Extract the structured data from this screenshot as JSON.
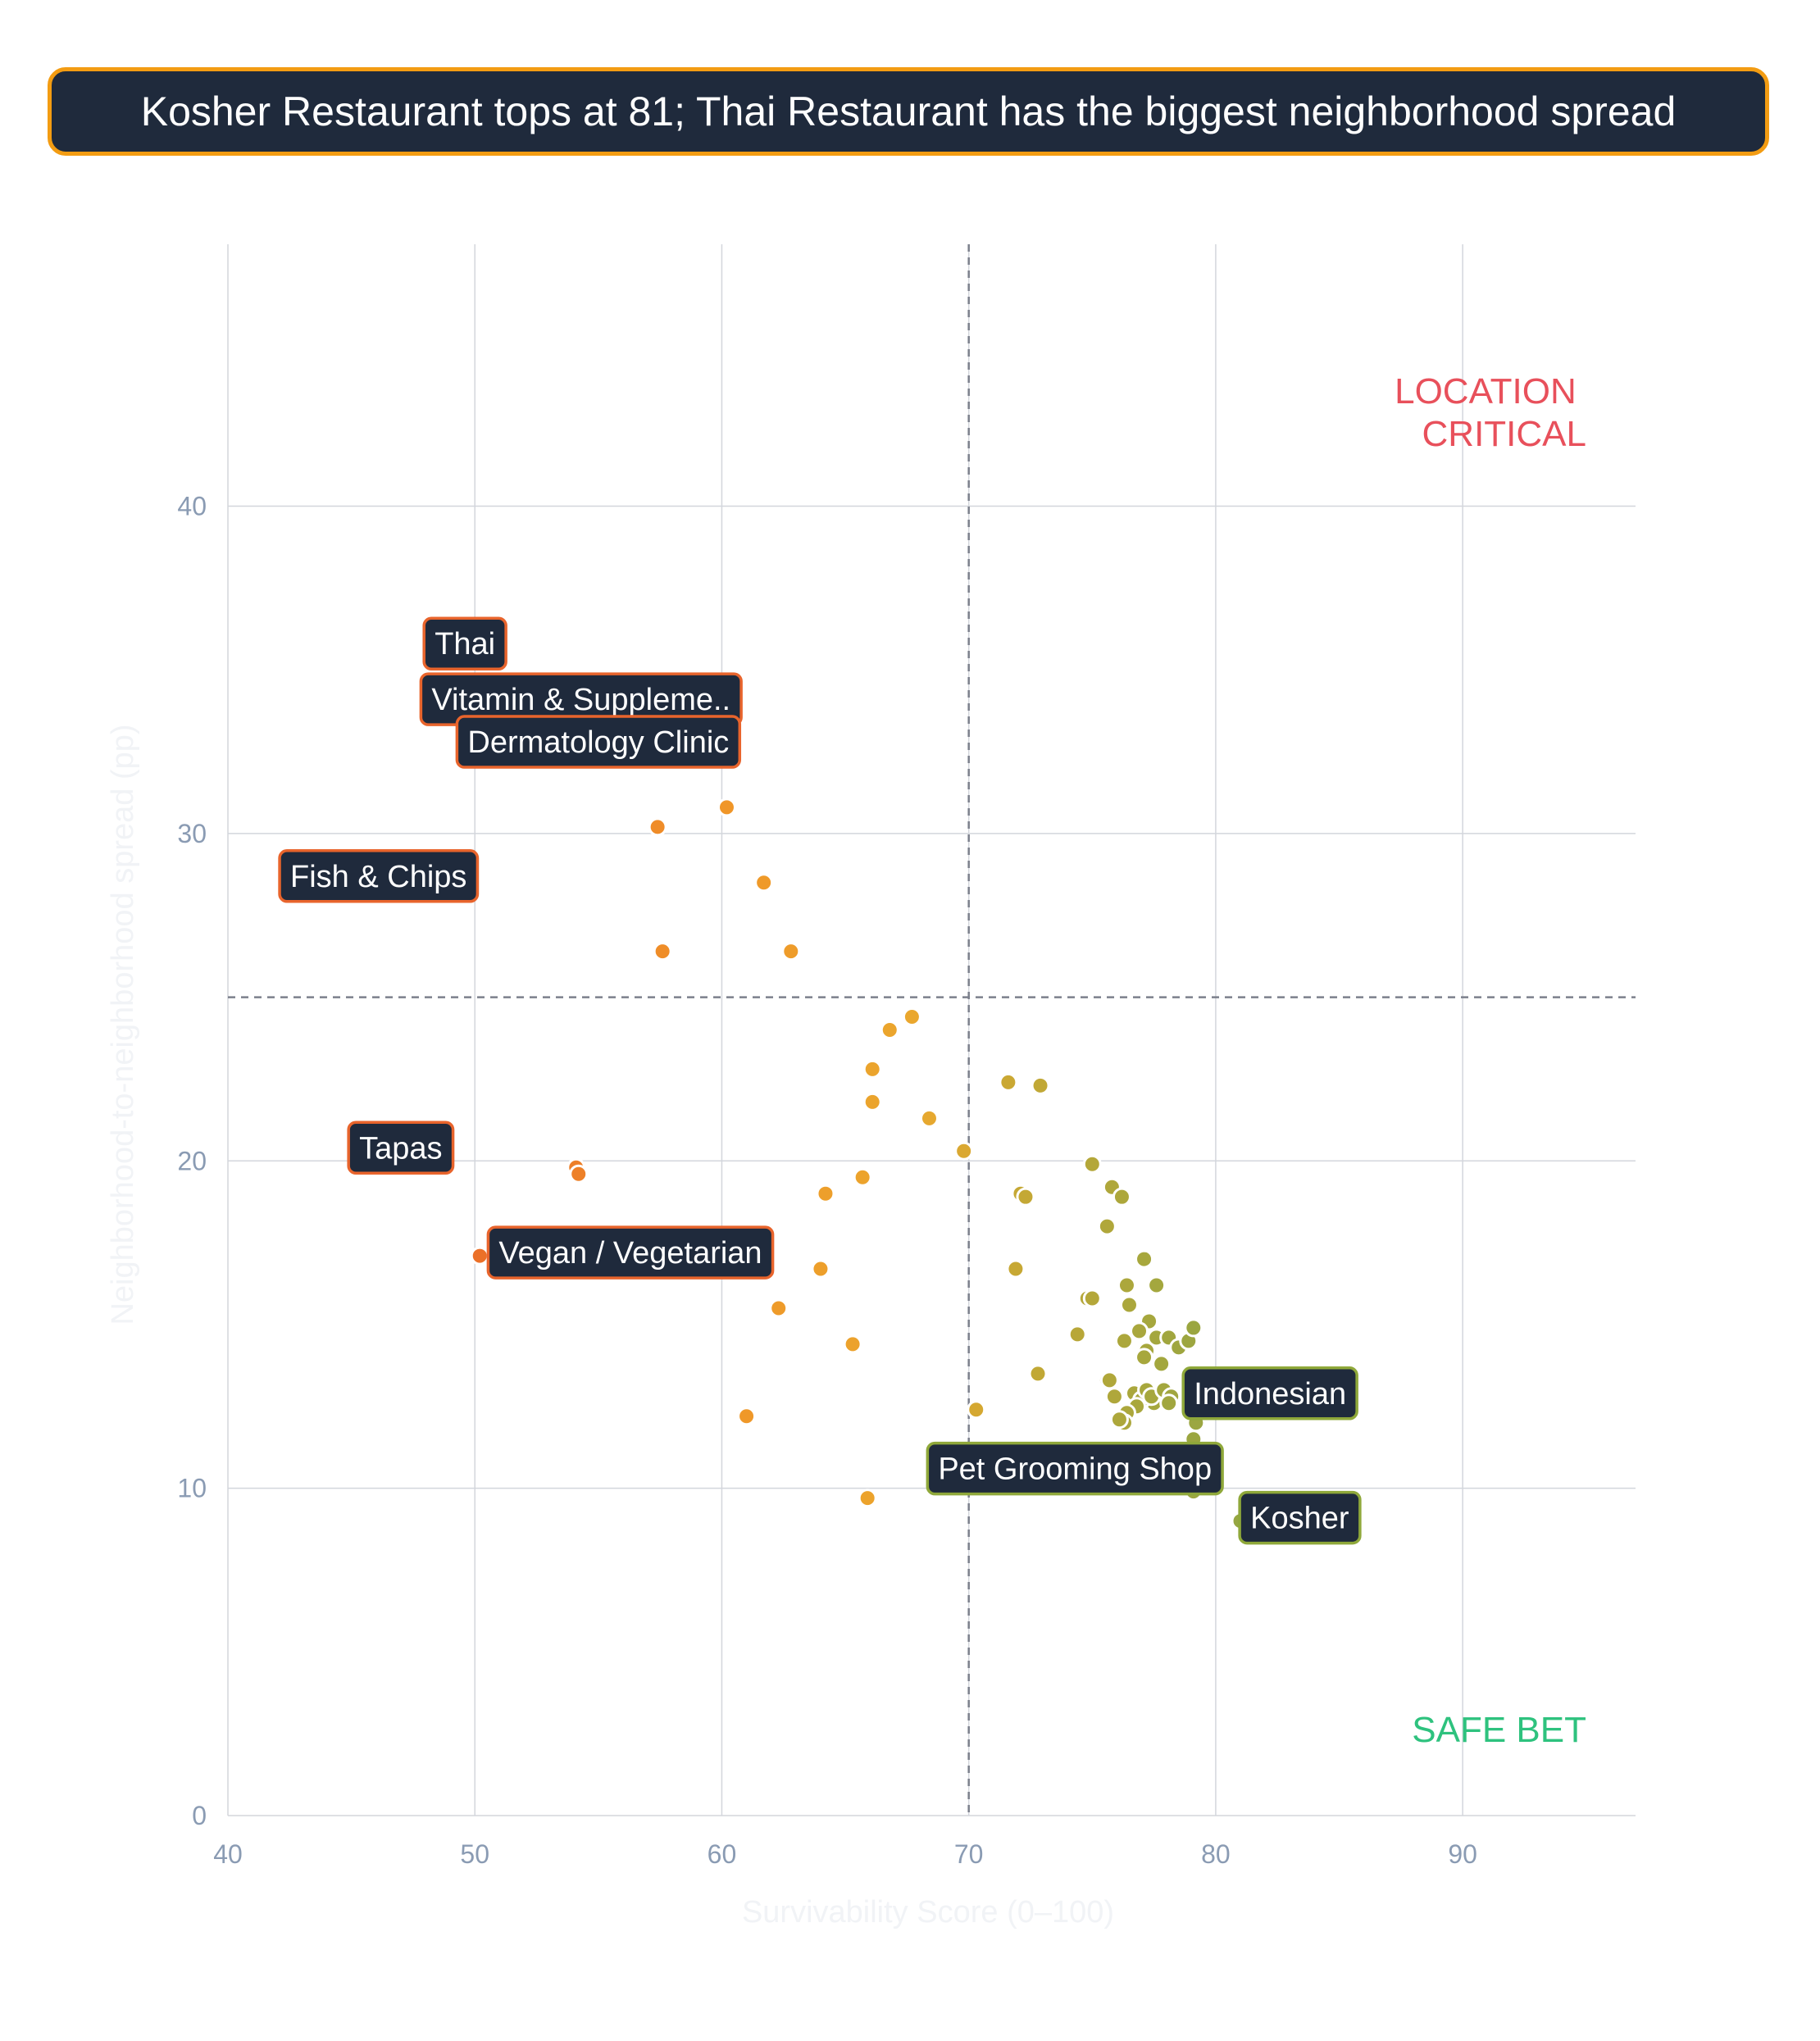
{
  "title": "Kosher Restaurant tops at 81; Thai Restaurant has the biggest neighborhood spread",
  "colors": {
    "title_bg": "#1f2a3c",
    "title_border": "#f39c12",
    "location_critical": "#e8505b",
    "safe_bet": "#2ec27e",
    "label_bg": "#1f2a3c",
    "orange_border": "#e8642c",
    "green_border": "#8fa83a"
  },
  "chart_data": {
    "type": "scatter",
    "title": "Kosher Restaurant tops at 81; Thai Restaurant has the biggest neighborhood spread",
    "xlabel": "Survivability Score (0–100)",
    "ylabel": "Neighborhood-to-neighborhood spread (pp)",
    "xlim": [
      40,
      97
    ],
    "ylim": [
      0,
      48
    ],
    "x_ticks": [
      40,
      50,
      60,
      70,
      80,
      90
    ],
    "y_ticks": [
      0,
      10,
      20,
      30,
      40
    ],
    "x_tick_labels": [
      "40",
      "50",
      "60",
      "70",
      "80",
      "90"
    ],
    "y_tick_labels": [
      "0",
      "10",
      "20",
      "30",
      "40"
    ],
    "grid": true,
    "reference_lines": {
      "x": 70,
      "y": 25
    },
    "quadrant_labels": {
      "top_right": [
        "LOCATION",
        "CRITICAL"
      ],
      "bottom_right": "SAFE BET"
    },
    "points": [
      {
        "x": 50.6,
        "y": 35.2,
        "label": "Thai",
        "label_x": 49.6,
        "label_y": 35.8
      },
      {
        "x": 54.4,
        "y": 33.4,
        "label": "Vitamin & Suppleme..",
        "label_x": 54.3,
        "label_y": 34.1
      },
      {
        "x": 54.2,
        "y": 32.6,
        "label": "Dermatology Clinic",
        "label_x": 55.0,
        "label_y": 32.8
      },
      {
        "x": 49.7,
        "y": 28.9,
        "label": "Fish & Chips",
        "label_x": 46.1,
        "label_y": 28.7
      },
      {
        "x": 45.4,
        "y": 19.9,
        "label": "Tapas",
        "label_x": 47.0,
        "label_y": 20.4
      },
      {
        "x": 50.2,
        "y": 17.1,
        "label": "Vegan / Vegetarian",
        "label_x": 56.3,
        "label_y": 17.2
      },
      {
        "x": 77.5,
        "y": 12.6,
        "label": "Indonesian",
        "label_x": 82.2,
        "label_y": 12.9
      },
      {
        "x": 75.5,
        "y": 10.5,
        "label": "Pet Grooming Shop",
        "label_x": 74.3,
        "label_y": 10.6
      },
      {
        "x": 81.0,
        "y": 9.0,
        "label": "Kosher",
        "label_x": 83.4,
        "label_y": 9.1
      },
      {
        "x": 54.1,
        "y": 32.8
      },
      {
        "x": 55.0,
        "y": 32.2
      },
      {
        "x": 57.4,
        "y": 30.2
      },
      {
        "x": 60.2,
        "y": 30.8
      },
      {
        "x": 61.7,
        "y": 28.5
      },
      {
        "x": 57.6,
        "y": 26.4
      },
      {
        "x": 62.8,
        "y": 26.4
      },
      {
        "x": 67.7,
        "y": 24.4
      },
      {
        "x": 66.8,
        "y": 24.0
      },
      {
        "x": 66.1,
        "y": 22.8
      },
      {
        "x": 66.1,
        "y": 21.8
      },
      {
        "x": 68.4,
        "y": 21.3
      },
      {
        "x": 69.8,
        "y": 20.3
      },
      {
        "x": 54.1,
        "y": 19.8
      },
      {
        "x": 54.2,
        "y": 19.6
      },
      {
        "x": 65.7,
        "y": 19.5
      },
      {
        "x": 64.2,
        "y": 19.0
      },
      {
        "x": 64.0,
        "y": 16.7
      },
      {
        "x": 62.3,
        "y": 15.5
      },
      {
        "x": 65.3,
        "y": 14.4
      },
      {
        "x": 61.0,
        "y": 12.2
      },
      {
        "x": 70.3,
        "y": 12.4
      },
      {
        "x": 65.9,
        "y": 9.7
      },
      {
        "x": 71.6,
        "y": 22.4
      },
      {
        "x": 72.9,
        "y": 22.3
      },
      {
        "x": 72.1,
        "y": 19.0
      },
      {
        "x": 72.3,
        "y": 18.9
      },
      {
        "x": 71.9,
        "y": 16.7
      },
      {
        "x": 72.8,
        "y": 13.5
      },
      {
        "x": 75.0,
        "y": 19.9
      },
      {
        "x": 75.8,
        "y": 19.2
      },
      {
        "x": 76.2,
        "y": 18.9
      },
      {
        "x": 75.6,
        "y": 18.0
      },
      {
        "x": 77.1,
        "y": 17.0
      },
      {
        "x": 77.6,
        "y": 16.2
      },
      {
        "x": 76.4,
        "y": 16.2
      },
      {
        "x": 74.8,
        "y": 15.8
      },
      {
        "x": 75.0,
        "y": 15.8
      },
      {
        "x": 76.5,
        "y": 15.6
      },
      {
        "x": 77.3,
        "y": 15.1
      },
      {
        "x": 76.9,
        "y": 14.8
      },
      {
        "x": 77.6,
        "y": 14.6
      },
      {
        "x": 78.1,
        "y": 14.6
      },
      {
        "x": 76.3,
        "y": 14.5
      },
      {
        "x": 74.4,
        "y": 14.7
      },
      {
        "x": 77.2,
        "y": 14.2
      },
      {
        "x": 77.1,
        "y": 14.0
      },
      {
        "x": 77.8,
        "y": 13.8
      },
      {
        "x": 78.5,
        "y": 14.3
      },
      {
        "x": 78.9,
        "y": 14.5
      },
      {
        "x": 79.1,
        "y": 14.9
      },
      {
        "x": 75.6,
        "y": 13.3
      },
      {
        "x": 75.7,
        "y": 13.3
      },
      {
        "x": 75.9,
        "y": 12.8
      },
      {
        "x": 76.7,
        "y": 12.9
      },
      {
        "x": 77.0,
        "y": 12.7
      },
      {
        "x": 77.2,
        "y": 13.0
      },
      {
        "x": 76.8,
        "y": 12.5
      },
      {
        "x": 77.4,
        "y": 12.8
      },
      {
        "x": 77.9,
        "y": 13.0
      },
      {
        "x": 78.2,
        "y": 12.8
      },
      {
        "x": 78.1,
        "y": 12.6
      },
      {
        "x": 76.4,
        "y": 12.3
      },
      {
        "x": 76.3,
        "y": 12.0
      },
      {
        "x": 76.1,
        "y": 12.1
      },
      {
        "x": 79.2,
        "y": 12.0
      },
      {
        "x": 79.1,
        "y": 11.5
      },
      {
        "x": 77.7,
        "y": 10.5
      },
      {
        "x": 78.1,
        "y": 10.1
      },
      {
        "x": 79.1,
        "y": 9.9
      }
    ]
  }
}
